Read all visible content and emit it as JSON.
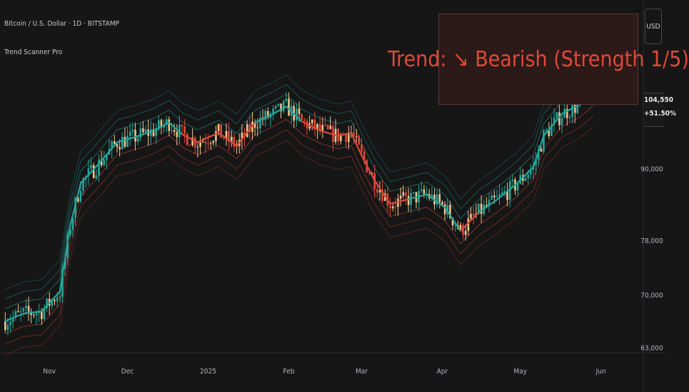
{
  "title": "Bitcoin / U.S. Dollar · 1D · BITSTAMP",
  "indicator_name": "Trend Scanner Pro",
  "trend_label": "Trend: ↘ Bearish (Strength 1/5)",
  "currency_button": "USD",
  "last_price": "104,550",
  "change_percent": "+51.50%",
  "colors": {
    "bullish": "#26a69a",
    "bearish": "#e0483a",
    "neutral_candle": "#f2c58e",
    "background": "#161616"
  },
  "chart_data": {
    "type": "line",
    "title": "Bitcoin / U.S. Dollar · 1D · BITSTAMP",
    "xlabel": "",
    "ylabel": "",
    "x_ticks": [
      {
        "label": "Nov",
        "x": "2024-11-01"
      },
      {
        "label": "Dec",
        "x": "2024-12-01"
      },
      {
        "label": "2025",
        "x": "2025-01-01"
      },
      {
        "label": "Feb",
        "x": "2025-02-01"
      },
      {
        "label": "Mar",
        "x": "2025-03-01"
      },
      {
        "label": "Apr",
        "x": "2025-04-01"
      },
      {
        "label": "May",
        "x": "2025-05-01"
      },
      {
        "label": "Jun",
        "x": "2025-06-01"
      }
    ],
    "y_ticks": [
      63000,
      70000,
      78000,
      90000
    ],
    "y_tick_labels": [
      "63,000",
      "70,000",
      "78,000",
      "90,000"
    ],
    "y_scale": "log",
    "xlim": [
      "2024-10-13",
      "2025-06-17"
    ],
    "ylim": [
      62600,
      124000
    ],
    "series": [
      {
        "type": "trend-line",
        "x": [
          "2024-10-15",
          "2024-10-22",
          "2024-10-29",
          "2024-11-05",
          "2024-11-09",
          "2024-11-13",
          "2024-11-20",
          "2024-11-27",
          "2024-12-04",
          "2024-12-11",
          "2024-12-17",
          "2024-12-22",
          "2024-12-28",
          "2025-01-05",
          "2025-01-12",
          "2025-01-19",
          "2025-01-26",
          "2025-01-31",
          "2025-02-06",
          "2025-02-13",
          "2025-02-20",
          "2025-02-25",
          "2025-03-01",
          "2025-03-06",
          "2025-03-12",
          "2025-03-19",
          "2025-03-26",
          "2025-04-02",
          "2025-04-08",
          "2025-04-15",
          "2025-04-22",
          "2025-04-29",
          "2025-05-06",
          "2025-05-10",
          "2025-05-17",
          "2025-05-24",
          "2025-05-29"
        ],
        "y": [
          66500,
          67500,
          67800,
          70500,
          80500,
          87500,
          91000,
          95000,
          96000,
          97200,
          98800,
          96500,
          95000,
          96800,
          94300,
          98800,
          100500,
          102000,
          99000,
          97200,
          96200,
          96800,
          92500,
          88000,
          84000,
          84800,
          85600,
          83400,
          79600,
          82600,
          84700,
          87200,
          90400,
          96200,
          100500,
          102500,
          104800
        ],
        "trend": [
          "bull",
          "bull",
          "bull",
          "bull",
          "bull",
          "bull",
          "bull",
          "bull",
          "bull",
          "bull",
          "bull",
          "bear",
          "bear",
          "bear",
          "bear",
          "bull",
          "bull",
          "bull",
          "bear",
          "bear",
          "bear",
          "bear",
          "bear",
          "bear",
          "bear",
          "bull",
          "bull",
          "bull",
          "bear",
          "bull",
          "bull",
          "bull",
          "bull",
          "bull",
          "bull",
          "bull",
          "bear"
        ]
      }
    ],
    "last_price": 104550,
    "change_percent": "+51.50%",
    "legend": "none",
    "grid": false
  }
}
